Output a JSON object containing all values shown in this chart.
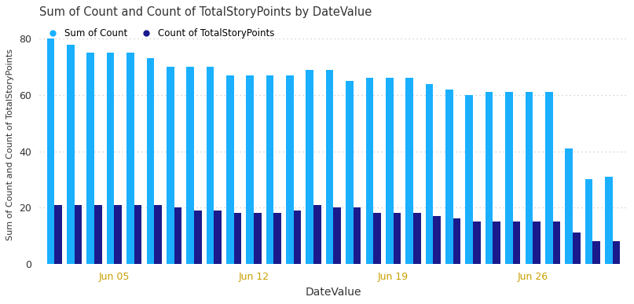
{
  "title": "Sum of Count and Count of TotalStoryPoints by DateValue",
  "xlabel": "DateValue",
  "ylabel": "Sum of Count and Count of TotalStoryPoints",
  "legend_labels": [
    "Sum of Count",
    "Count of TotalStoryPoints"
  ],
  "legend_dot_colors": [
    "#1ab0ff",
    "#1a1a8c"
  ],
  "bar_color_1": "#1ab0ff",
  "bar_color_2": "#1a1a8c",
  "background_color": "#ffffff",
  "grid_color": "#c8c8c8",
  "ylim": [
    0,
    85
  ],
  "yticks": [
    0,
    20,
    40,
    60,
    80
  ],
  "x_tick_positions": [
    3,
    10,
    17,
    24
  ],
  "x_tick_labels": [
    "Jun 05",
    "Jun 12",
    "Jun 19",
    "Jun 26"
  ],
  "x_tick_color": "#c8a000",
  "xlabel_color": "#333333",
  "ylabel_color": "#333333",
  "title_color": "#333333",
  "sum_of_count": [
    80,
    78,
    75,
    75,
    75,
    73,
    70,
    70,
    70,
    67,
    67,
    67,
    67,
    69,
    69,
    65,
    66,
    66,
    66,
    64,
    62,
    60,
    61,
    61,
    61,
    61,
    41,
    30,
    31
  ],
  "count_of_tsp": [
    21,
    21,
    21,
    21,
    21,
    21,
    20,
    19,
    19,
    18,
    18,
    18,
    19,
    21,
    20,
    20,
    18,
    18,
    18,
    17,
    16,
    15,
    15,
    15,
    15,
    15,
    11,
    8,
    8
  ],
  "n_groups": 29,
  "bar_width": 0.38,
  "figsize": [
    8.07,
    3.87
  ],
  "dpi": 100
}
